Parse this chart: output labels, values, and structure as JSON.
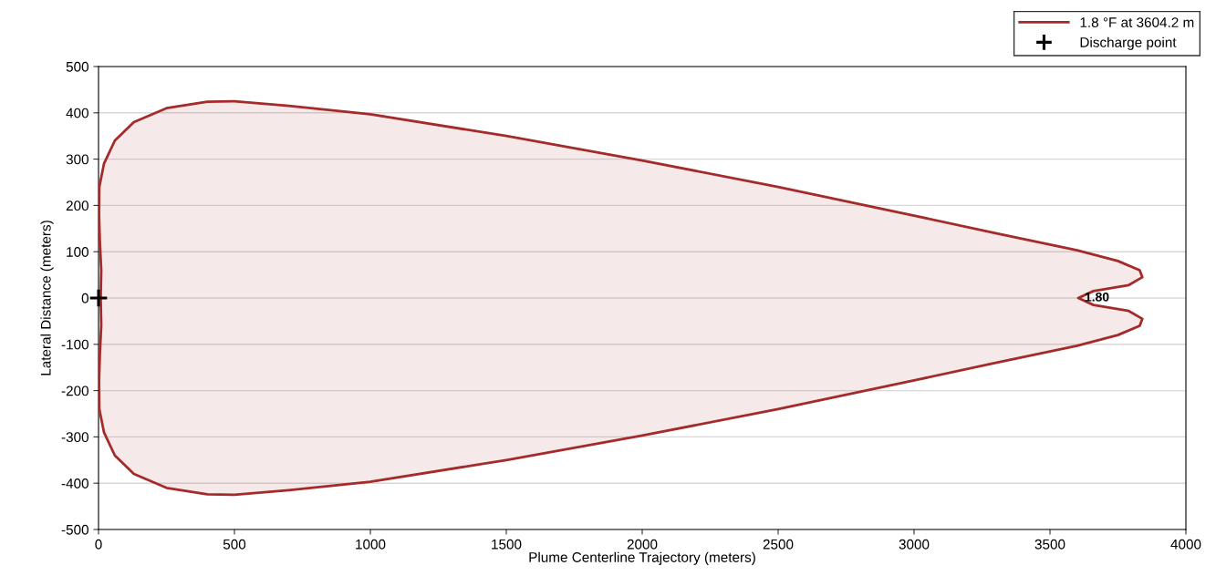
{
  "chart_data": {
    "type": "area",
    "xlabel": "Plume Centerline Trajectory (meters)",
    "ylabel": "Lateral Distance (meters)",
    "xlim": [
      0,
      4000
    ],
    "xticks": [
      0,
      500,
      1000,
      1500,
      2000,
      2500,
      3000,
      3500,
      4000
    ],
    "ylim": [
      -500,
      500
    ],
    "yticks": [
      -500,
      -400,
      -300,
      -200,
      -100,
      0,
      100,
      200,
      300,
      400,
      500
    ],
    "grid": "y",
    "legend": "top right",
    "series": [
      {
        "name": "1.8 °F at 3604.2 m",
        "color": "#a52a2a",
        "x": [
          8,
          10,
          5,
          2,
          3,
          20,
          60,
          130,
          250,
          400,
          500,
          700,
          1000,
          1500,
          2000,
          2500,
          3000,
          3300,
          3600,
          3750,
          3830,
          3840,
          3790,
          3660,
          3604.2,
          3660,
          3790,
          3840,
          3830,
          3750,
          3600,
          3300,
          3000,
          2500,
          2000,
          1500,
          1000,
          700,
          500,
          400,
          250,
          130,
          60,
          20,
          3,
          2,
          5,
          10,
          8
        ],
        "values": [
          0,
          60,
          120,
          180,
          240,
          290,
          340,
          380,
          410,
          424,
          425,
          415,
          397,
          350,
          297,
          240,
          178,
          140,
          103,
          80,
          60,
          45,
          28,
          15,
          0,
          -15,
          -28,
          -45,
          -60,
          -80,
          -103,
          -140,
          -178,
          -240,
          -297,
          -350,
          -397,
          -415,
          -425,
          -424,
          -410,
          -380,
          -340,
          -290,
          -240,
          -180,
          -120,
          -60,
          0
        ]
      },
      {
        "name": "Discharge point",
        "type": "scatter",
        "marker": "cross",
        "color": "#000000",
        "x": [
          0
        ],
        "values": [
          0
        ]
      }
    ],
    "annotations": [
      {
        "text": "1.80",
        "x": 3604.2,
        "y": 0
      }
    ]
  }
}
